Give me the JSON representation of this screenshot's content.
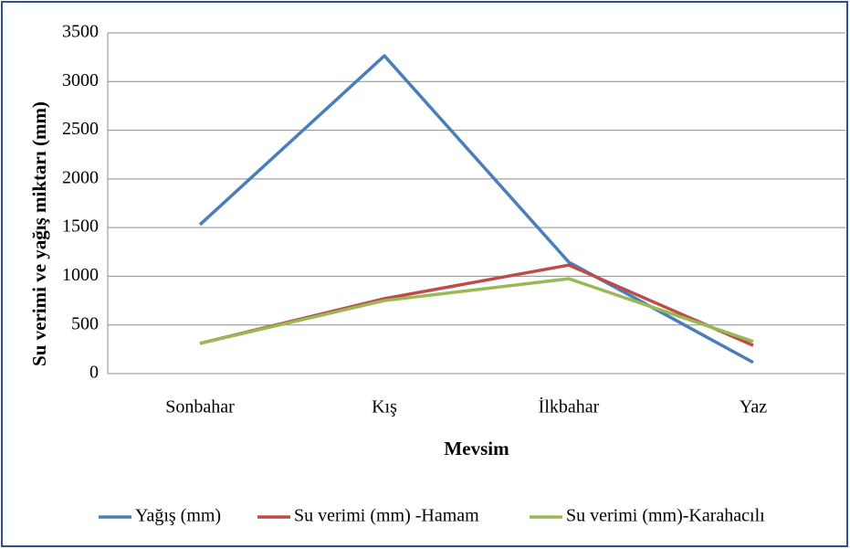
{
  "chart_data": {
    "type": "line",
    "xlabel": "Mevsim",
    "ylabel": "Su verimi ve yağış miktarı (mm)",
    "categories": [
      "Sonbahar",
      "Kış",
      "İlkbahar",
      "Yaz"
    ],
    "series": [
      {
        "name": "Yağış (mm)",
        "color": "#4a7ebb",
        "values": [
          1530,
          3265,
          1145,
          115
        ]
      },
      {
        "name": "Su verimi (mm) -Hamam",
        "color": "#be4b48",
        "values": [
          310,
          770,
          1115,
          290
        ]
      },
      {
        "name": "Su verimi (mm)-Karahacılı",
        "color": "#98b954",
        "values": [
          310,
          750,
          975,
          330
        ]
      }
    ],
    "ylim": [
      0,
      3500
    ],
    "yticks": [
      0,
      500,
      1000,
      1500,
      2000,
      2500,
      3000,
      3500
    ],
    "grid": true
  }
}
